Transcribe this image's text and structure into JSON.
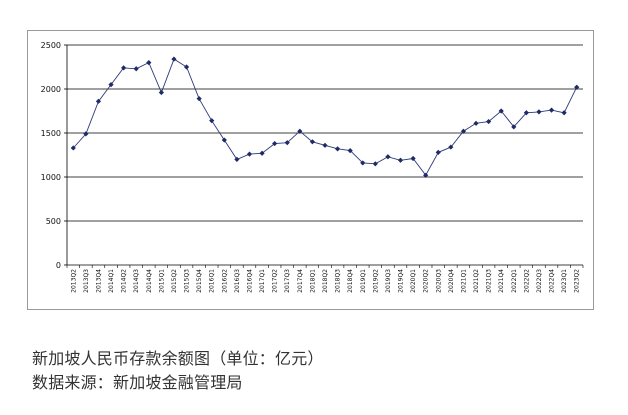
{
  "chart_data": {
    "type": "line",
    "title": "",
    "xlabel": "",
    "ylabel": "",
    "ylim": [
      0,
      2500
    ],
    "yticks": [
      0,
      500,
      1000,
      1500,
      2000,
      2500
    ],
    "grid": true,
    "legend": "none",
    "line_color": "#2e3a78",
    "marker_color": "#1f2a66",
    "categories": [
      "2013Q2",
      "2013Q3",
      "2013Q4",
      "2014Q1",
      "2014Q2",
      "2014Q3",
      "2014Q4",
      "2015Q1",
      "2015Q2",
      "2015Q3",
      "2015Q4",
      "2016Q1",
      "2016Q2",
      "2016Q3",
      "2016Q4",
      "2017Q1",
      "2017Q2",
      "2017Q3",
      "2017Q4",
      "2018Q1",
      "2018Q2",
      "2018Q3",
      "2018Q4",
      "2019Q1",
      "2019Q2",
      "2019Q3",
      "2019Q4",
      "2020Q1",
      "2020Q2",
      "2020Q3",
      "2020Q4",
      "2021Q1",
      "2021Q2",
      "2021Q3",
      "2021Q4",
      "2022Q1",
      "2022Q2",
      "2022Q3",
      "2022Q4",
      "2023Q1",
      "2023Q2"
    ],
    "values": [
      1330,
      1490,
      1860,
      2050,
      2240,
      2230,
      2300,
      1960,
      2340,
      2250,
      1890,
      1640,
      1420,
      1200,
      1260,
      1270,
      1380,
      1390,
      1520,
      1400,
      1360,
      1320,
      1300,
      1160,
      1150,
      1230,
      1190,
      1210,
      1020,
      1280,
      1340,
      1520,
      1610,
      1630,
      1750,
      1570,
      1730,
      1740,
      1760,
      1730,
      2020
    ]
  },
  "caption": {
    "title": "新加坡人民币存款余额图（单位：亿元）",
    "source": "数据来源：新加坡金融管理局"
  }
}
